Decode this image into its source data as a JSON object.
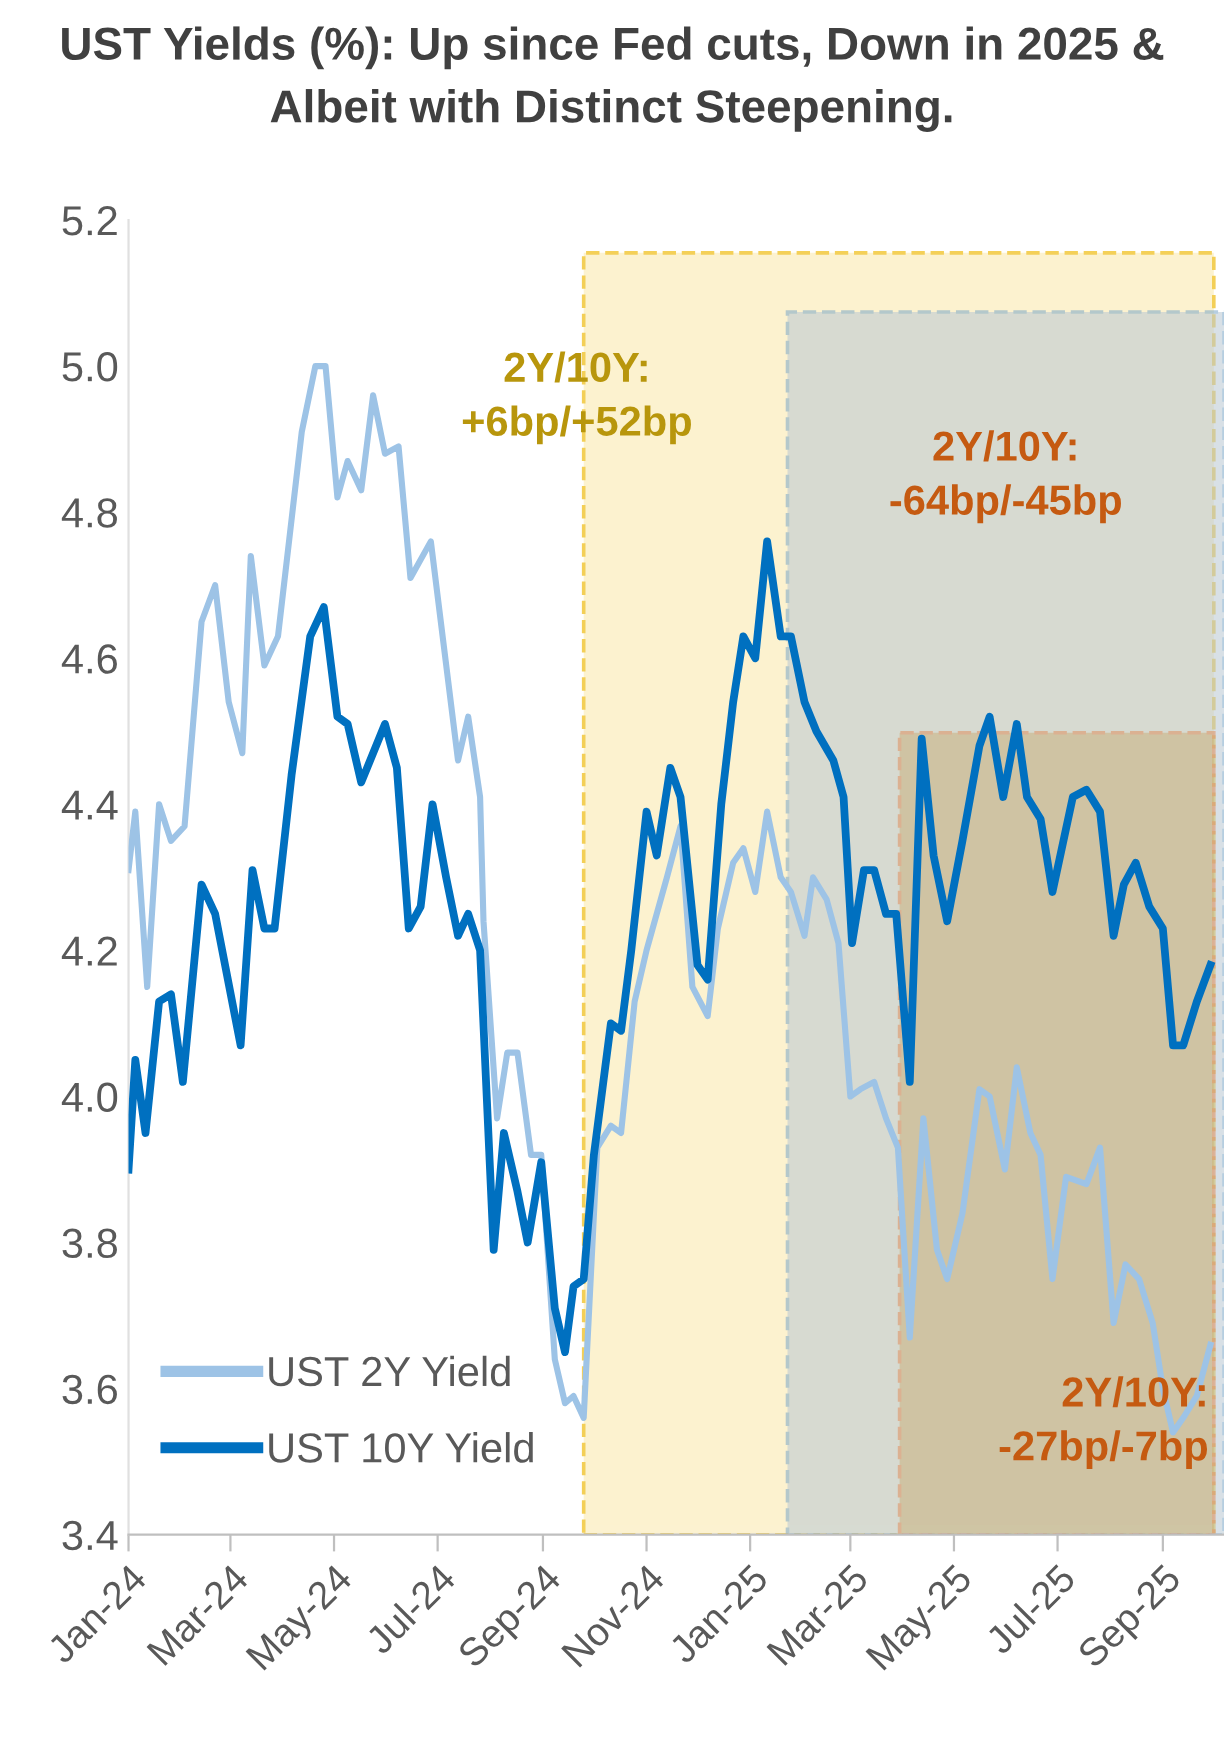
{
  "chart_data": {
    "type": "line",
    "title": "UST Yields (%): Up since Fed cuts, Down in 2025 & Albeit with Distinct Steepening.",
    "xlim": [
      "2024-01-01",
      "2025-10-07"
    ],
    "xticks": [
      {
        "value": "2024-01-01",
        "label": "Jan-24"
      },
      {
        "value": "2024-03-01",
        "label": "Mar-24"
      },
      {
        "value": "2024-05-01",
        "label": "May-24"
      },
      {
        "value": "2024-07-01",
        "label": "Jul-24"
      },
      {
        "value": "2024-09-01",
        "label": "Sep-24"
      },
      {
        "value": "2024-11-01",
        "label": "Nov-24"
      },
      {
        "value": "2025-01-01",
        "label": "Jan-25"
      },
      {
        "value": "2025-03-01",
        "label": "Mar-25"
      },
      {
        "value": "2025-05-01",
        "label": "May-25"
      },
      {
        "value": "2025-07-01",
        "label": "Jul-25"
      },
      {
        "value": "2025-09-01",
        "label": "Sep-25"
      }
    ],
    "ylim": [
      3.4,
      5.2
    ],
    "yticks": [
      3.4,
      3.6,
      3.8,
      {
        "value": 4,
        "label": "4.0"
      },
      4.2,
      4.4,
      4.6,
      4.8,
      {
        "value": 5,
        "label": "5.0"
      },
      5.2
    ],
    "grid": false,
    "legend": "bottom left",
    "marker": "none",
    "line_style": "solid",
    "bands": [
      {
        "axis": "x",
        "from": "2024-09-25",
        "to": "2025-10-01",
        "label": "2Y/10Y:\n+6bp/+52bp",
        "color": "#f0c020"
      },
      {
        "axis": "x",
        "from": "2025-01-23",
        "to": "2025-10-07",
        "label": "2Y/10Y:\n-64bp/-45bp",
        "color": "#7ba7c8"
      },
      {
        "axis": "x",
        "from": "2025-03-30",
        "to": "2025-10-01",
        "label": "2Y/10Y:\n-27bp/-7bp",
        "color": "#e0905f"
      }
    ],
    "series": [
      {
        "name": "UST 2Y Yield",
        "color": "#9dc3e6",
        "x": [
          "2024-01-01",
          "2024-01-05",
          "2024-01-12",
          "2024-01-19",
          "2024-01-26",
          "2024-02-03",
          "2024-02-13",
          "2024-02-21",
          "2024-02-29",
          "2024-03-08",
          "2024-03-13",
          "2024-03-21",
          "2024-03-29",
          "2024-04-12",
          "2024-04-20",
          "2024-04-26",
          "2024-05-03",
          "2024-05-09",
          "2024-05-17",
          "2024-05-24",
          "2024-05-31",
          "2024-06-08",
          "2024-06-15",
          "2024-06-27",
          "2024-07-13",
          "2024-07-19",
          "2024-07-26",
          "2024-07-28",
          "2024-08-05",
          "2024-08-11",
          "2024-08-17",
          "2024-08-25",
          "2024-08-31",
          "2024-09-08",
          "2024-09-14",
          "2024-09-19",
          "2024-09-25",
          "2024-10-03",
          "2024-10-11",
          "2024-10-17",
          "2024-10-25",
          "2024-11-01",
          "2024-11-13",
          "2024-11-21",
          "2024-11-28",
          "2024-12-07",
          "2024-12-13",
          "2024-12-22",
          "2024-12-28",
          "2025-01-04",
          "2025-01-11",
          "2025-01-19",
          "2025-01-25",
          "2025-02-02",
          "2025-02-07",
          "2025-02-15",
          "2025-02-22",
          "2025-03-01",
          "2025-03-07",
          "2025-03-15",
          "2025-03-22",
          "2025-03-29",
          "2025-04-05",
          "2025-04-13",
          "2025-04-21",
          "2025-04-27",
          "2025-05-06",
          "2025-05-16",
          "2025-05-22",
          "2025-05-31",
          "2025-06-07",
          "2025-06-15",
          "2025-06-21",
          "2025-06-28",
          "2025-07-06",
          "2025-07-18",
          "2025-07-26",
          "2025-08-03",
          "2025-08-10",
          "2025-08-18",
          "2025-08-26",
          "2025-09-01",
          "2025-09-07",
          "2025-09-13",
          "2025-09-21",
          "2025-09-29"
        ],
        "values": [
          4.31,
          4.39,
          4.15,
          4.4,
          4.35,
          4.37,
          4.65,
          4.7,
          4.54,
          4.47,
          4.74,
          4.59,
          4.63,
          4.91,
          5.0,
          5.0,
          4.82,
          4.87,
          4.83,
          4.96,
          4.88,
          4.89,
          4.71,
          4.76,
          4.46,
          4.52,
          4.41,
          4.24,
          3.97,
          4.06,
          4.06,
          3.92,
          3.92,
          3.64,
          3.58,
          3.59,
          3.56,
          3.93,
          3.96,
          3.95,
          4.13,
          4.2,
          4.3,
          4.37,
          4.15,
          4.11,
          4.23,
          4.32,
          4.34,
          4.28,
          4.39,
          4.3,
          4.28,
          4.22,
          4.3,
          4.27,
          4.21,
          4.0,
          4.01,
          4.02,
          3.97,
          3.93,
          3.67,
          3.97,
          3.79,
          3.75,
          3.84,
          4.01,
          4.0,
          3.9,
          4.04,
          3.95,
          3.92,
          3.75,
          3.89,
          3.88,
          3.93,
          3.69,
          3.77,
          3.75,
          3.69,
          3.6,
          3.54,
          3.56,
          3.59,
          3.66
        ]
      },
      {
        "name": "UST 10Y Yield",
        "color": "#0070c0",
        "x": [
          "2024-01-01",
          "2024-01-05",
          "2024-01-11",
          "2024-01-19",
          "2024-01-26",
          "2024-02-02",
          "2024-02-13",
          "2024-02-21",
          "2024-03-07",
          "2024-03-14",
          "2024-03-21",
          "2024-03-27",
          "2024-04-06",
          "2024-04-17",
          "2024-04-25",
          "2024-05-03",
          "2024-05-09",
          "2024-05-17",
          "2024-05-31",
          "2024-06-07",
          "2024-06-14",
          "2024-06-21",
          "2024-06-28",
          "2024-07-06",
          "2024-07-13",
          "2024-07-19",
          "2024-07-26",
          "2024-08-03",
          "2024-08-09",
          "2024-08-17",
          "2024-08-23",
          "2024-08-31",
          "2024-09-08",
          "2024-09-14",
          "2024-09-19",
          "2024-09-25",
          "2024-10-01",
          "2024-10-11",
          "2024-10-17",
          "2024-10-23",
          "2024-11-01",
          "2024-11-07",
          "2024-11-15",
          "2024-11-21",
          "2024-12-01",
          "2024-12-07",
          "2024-12-15",
          "2024-12-22",
          "2024-12-28",
          "2025-01-04",
          "2025-01-11",
          "2025-01-19",
          "2025-01-25",
          "2025-02-02",
          "2025-02-09",
          "2025-02-19",
          "2025-02-25",
          "2025-03-02",
          "2025-03-09",
          "2025-03-15",
          "2025-03-22",
          "2025-03-28",
          "2025-04-05",
          "2025-04-12",
          "2025-04-19",
          "2025-04-27",
          "2025-05-06",
          "2025-05-16",
          "2025-05-22",
          "2025-05-30",
          "2025-06-07",
          "2025-06-13",
          "2025-06-21",
          "2025-06-28",
          "2025-07-10",
          "2025-07-18",
          "2025-07-26",
          "2025-08-03",
          "2025-08-09",
          "2025-08-16",
          "2025-08-24",
          "2025-09-01",
          "2025-09-07",
          "2025-09-13",
          "2025-09-21",
          "2025-09-29"
        ],
        "values": [
          3.9,
          4.05,
          3.95,
          4.13,
          4.14,
          4.02,
          4.29,
          4.25,
          4.07,
          4.31,
          4.23,
          4.23,
          4.44,
          4.63,
          4.67,
          4.52,
          4.51,
          4.43,
          4.51,
          4.45,
          4.23,
          4.26,
          4.4,
          4.3,
          4.22,
          4.25,
          4.2,
          3.79,
          3.95,
          3.87,
          3.8,
          3.91,
          3.71,
          3.65,
          3.74,
          3.75,
          3.92,
          4.1,
          4.09,
          4.2,
          4.39,
          4.33,
          4.45,
          4.41,
          4.18,
          4.16,
          4.4,
          4.54,
          4.63,
          4.6,
          4.76,
          4.63,
          4.63,
          4.54,
          4.5,
          4.46,
          4.41,
          4.21,
          4.31,
          4.31,
          4.25,
          4.25,
          4.02,
          4.49,
          4.33,
          4.24,
          4.35,
          4.48,
          4.52,
          4.41,
          4.51,
          4.41,
          4.38,
          4.28,
          4.41,
          4.42,
          4.39,
          4.22,
          4.29,
          4.32,
          4.26,
          4.23,
          4.07,
          4.07,
          4.13,
          4.18
        ]
      }
    ]
  }
}
